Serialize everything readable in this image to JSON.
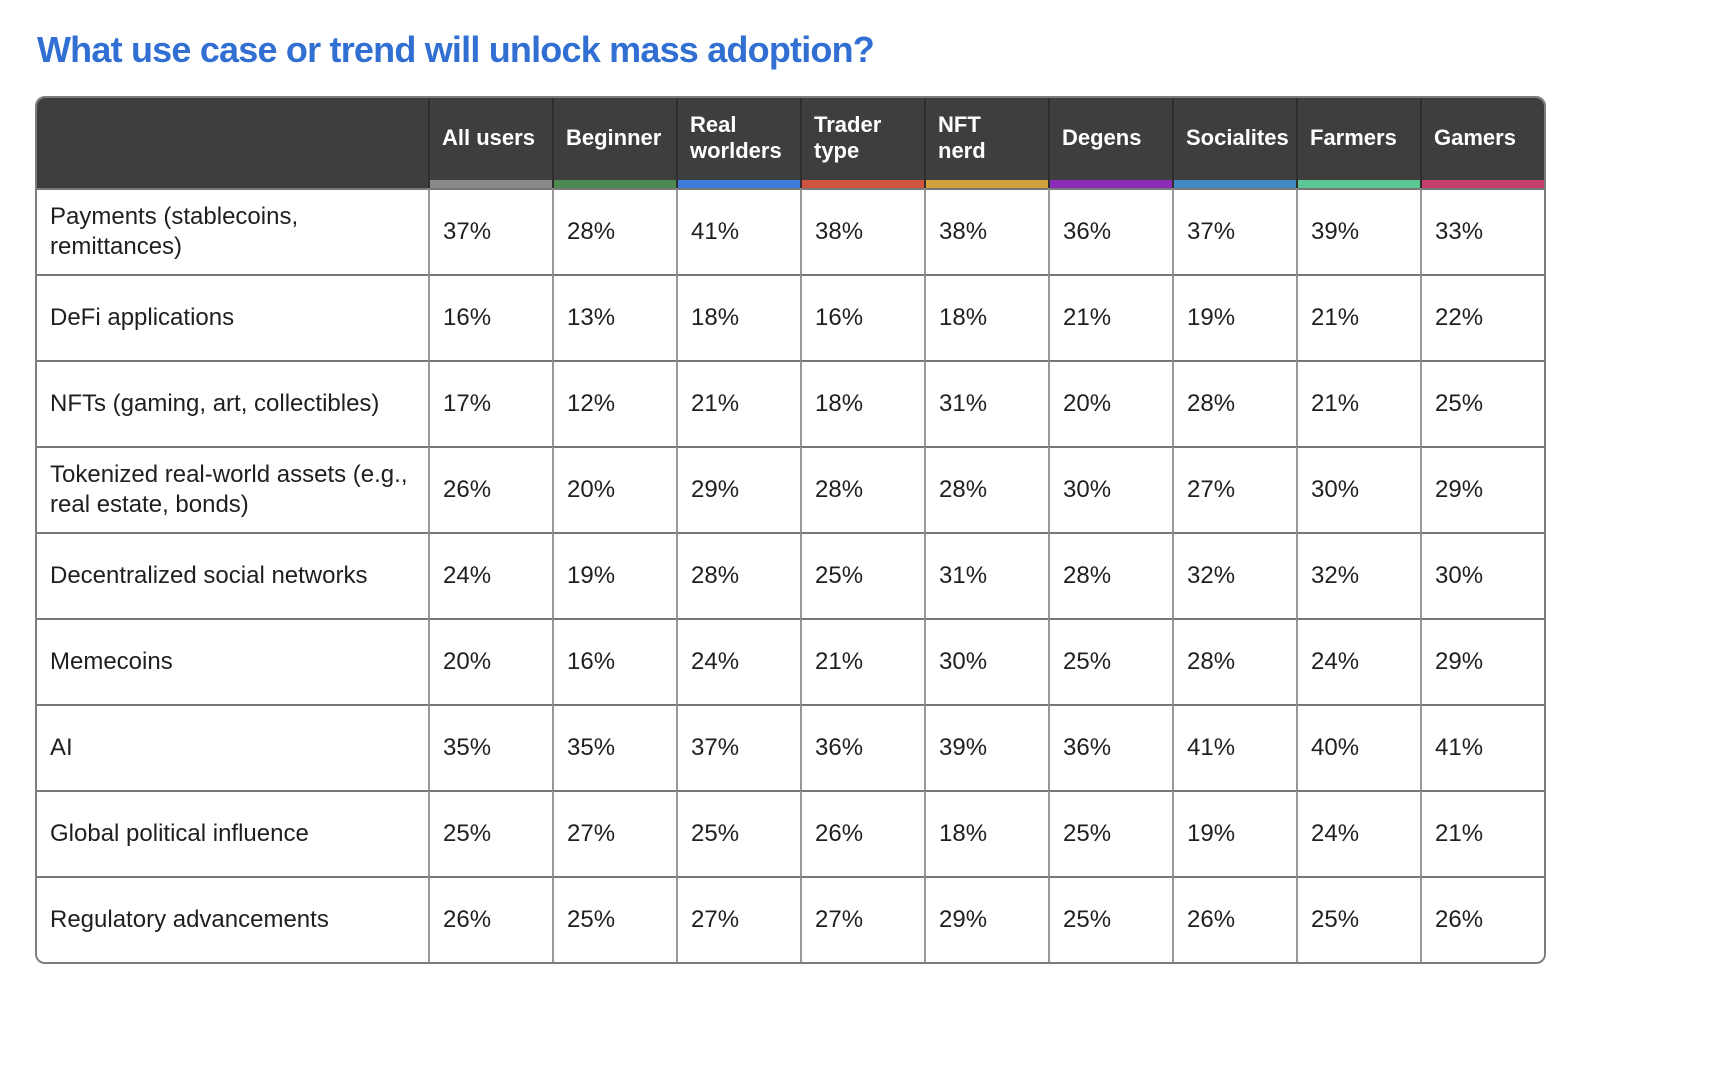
{
  "chart_data": {
    "type": "table",
    "title": "What use case or trend will unlock mass adoption?",
    "unit": "%",
    "columns": [
      "All users",
      "Beginner",
      "Real worlders",
      "Trader type",
      "NFT nerd",
      "Degens",
      "Socialites",
      "Farmers",
      "Gamers"
    ],
    "column_accent_colors": [
      "#8a8a8a",
      "#4d8a51",
      "#3d7cdd",
      "#cf5440",
      "#d0a23b",
      "#8d2bb8",
      "#4089c4",
      "#5bc795",
      "#c33d6e"
    ],
    "rows": [
      {
        "label": "Payments (stablecoins, remittances)",
        "values": [
          37,
          28,
          41,
          38,
          38,
          36,
          37,
          39,
          33
        ]
      },
      {
        "label": "DeFi applications",
        "values": [
          16,
          13,
          18,
          16,
          18,
          21,
          19,
          21,
          22
        ]
      },
      {
        "label": "NFTs (gaming, art, collectibles)",
        "values": [
          17,
          12,
          21,
          18,
          31,
          20,
          28,
          21,
          25
        ]
      },
      {
        "label": "Tokenized real-world assets (e.g., real estate, bonds)",
        "values": [
          26,
          20,
          29,
          28,
          28,
          30,
          27,
          30,
          29
        ]
      },
      {
        "label": "Decentralized social networks",
        "values": [
          24,
          19,
          28,
          25,
          31,
          28,
          32,
          32,
          30
        ]
      },
      {
        "label": "Memecoins",
        "values": [
          20,
          16,
          24,
          21,
          30,
          25,
          28,
          24,
          29
        ]
      },
      {
        "label": "AI",
        "values": [
          35,
          35,
          37,
          36,
          39,
          36,
          41,
          40,
          41
        ]
      },
      {
        "label": "Global political influence",
        "values": [
          25,
          27,
          25,
          26,
          18,
          25,
          19,
          24,
          21
        ]
      },
      {
        "label": "Regulatory advancements",
        "values": [
          26,
          25,
          27,
          27,
          29,
          25,
          26,
          25,
          26
        ]
      }
    ]
  },
  "theme": {
    "title_color": "#3170d2",
    "header_bg": "#3e3e3e",
    "header_text_color": "#ffffff",
    "cell_text_color": "#1f1f1f",
    "grid_color": "#787878"
  }
}
